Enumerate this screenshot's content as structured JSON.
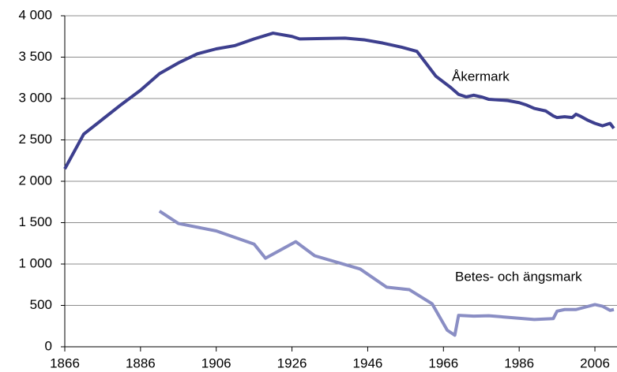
{
  "chart_data": {
    "type": "line",
    "xlim": [
      1866,
      2011
    ],
    "xticks": [
      1866,
      1886,
      1906,
      1926,
      1946,
      1966,
      1986,
      2006
    ],
    "ylim": [
      0,
      4000
    ],
    "yticks": [
      0,
      500,
      {
        "value": 1000,
        "label": "1 000"
      },
      {
        "value": 1500,
        "label": "1 500"
      },
      {
        "value": 2000,
        "label": "2 000"
      },
      {
        "value": 2500,
        "label": "2 500"
      },
      {
        "value": 3000,
        "label": "3 000"
      },
      {
        "value": 3500,
        "label": "3 500"
      },
      {
        "value": 4000,
        "label": "4 000"
      }
    ],
    "grid": true,
    "series": [
      {
        "name": "Åkermark",
        "color": "#3d3f8e",
        "x": [
          1866,
          1871,
          1876,
          1881,
          1886,
          1891,
          1896,
          1901,
          1906,
          1911,
          1916,
          1921,
          1926,
          1928,
          1934,
          1940,
          1945,
          1950,
          1955,
          1959,
          1961,
          1964,
          1968,
          1970,
          1972,
          1974,
          1976,
          1978,
          1980,
          1983,
          1986,
          1988,
          1990,
          1993,
          1995,
          1996,
          1998,
          2000,
          2001,
          2002,
          2004,
          2006,
          2008,
          2010,
          2011
        ],
        "values": [
          2150,
          2570,
          2750,
          2930,
          3100,
          3300,
          3430,
          3540,
          3600,
          3640,
          3720,
          3790,
          3750,
          3720,
          3725,
          3730,
          3710,
          3670,
          3620,
          3570,
          3450,
          3270,
          3130,
          3050,
          3020,
          3040,
          3020,
          2990,
          2985,
          2975,
          2950,
          2920,
          2880,
          2850,
          2790,
          2770,
          2780,
          2770,
          2810,
          2790,
          2740,
          2700,
          2670,
          2700,
          2640
        ]
      },
      {
        "name": "Betes- och ängsmark",
        "color": "#8a8ec4",
        "x": [
          1891,
          1896,
          1906,
          1916,
          1919,
          1927,
          1932,
          1944,
          1951,
          1957,
          1963,
          1967,
          1969,
          1970,
          1974,
          1978,
          1982,
          1990,
          1995,
          1996,
          1998,
          2001,
          2006,
          2008,
          2010,
          2011
        ],
        "values": [
          1640,
          1490,
          1400,
          1240,
          1070,
          1270,
          1100,
          940,
          720,
          690,
          520,
          200,
          140,
          380,
          370,
          375,
          360,
          330,
          340,
          430,
          450,
          450,
          510,
          490,
          440,
          450
        ]
      }
    ]
  }
}
